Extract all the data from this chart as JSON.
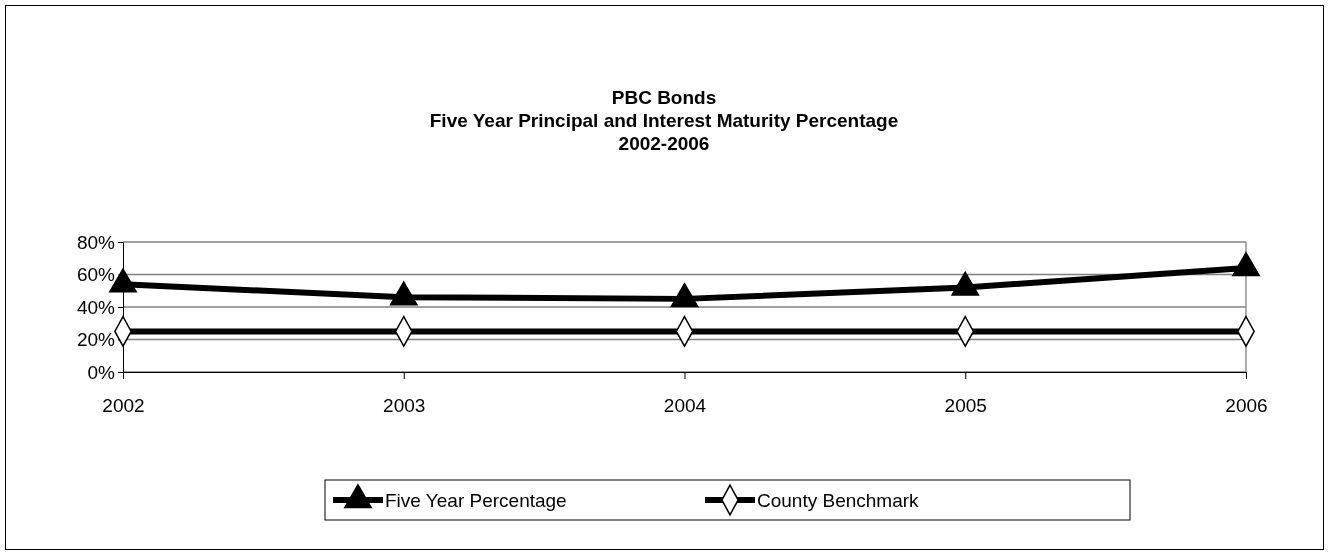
{
  "chart_data": {
    "type": "line",
    "title": "PBC Bonds\nFive Year Principal and Interest Maturity Percentage\n2002-2006",
    "categories": [
      "2002",
      "2003",
      "2004",
      "2005",
      "2006"
    ],
    "series": [
      {
        "name": "Five Year Percentage",
        "color": "#000000",
        "marker": "triangle",
        "values": [
          54,
          46,
          45,
          52,
          64
        ]
      },
      {
        "name": "County Benchmark",
        "color": "#000000",
        "marker": "diamond",
        "values": [
          25,
          25,
          25,
          25,
          25
        ]
      }
    ],
    "ylim": [
      0,
      80
    ],
    "yticks": [
      {
        "value": 0,
        "label": "0%"
      },
      {
        "value": 20,
        "label": "20%"
      },
      {
        "value": 40,
        "label": "40%"
      },
      {
        "value": 60,
        "label": "60%"
      },
      {
        "value": 80,
        "label": "80%"
      }
    ],
    "grid": "y",
    "legend": "bottom",
    "line_style": "solid"
  }
}
